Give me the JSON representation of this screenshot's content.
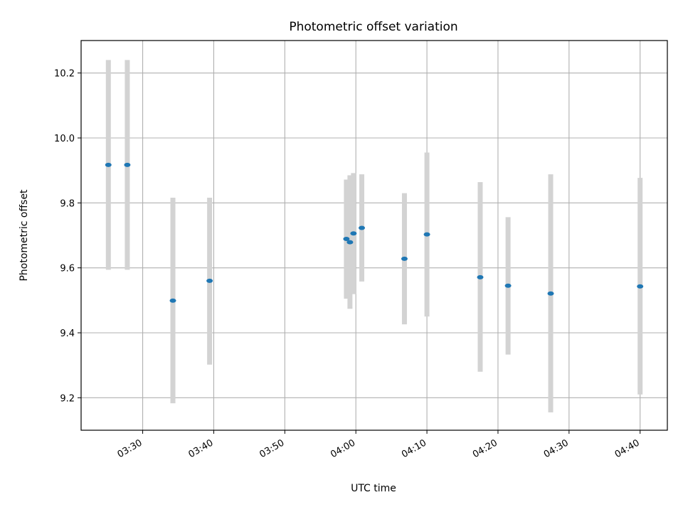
{
  "chart_data": {
    "type": "scatter",
    "title": "Photometric offset variation",
    "xlabel": "UTC time",
    "ylabel": "Photometric offset",
    "x_axis": "time",
    "xlim": [
      "03:21:20",
      "04:43:50"
    ],
    "ylim": [
      9.1,
      10.3
    ],
    "xticks": [
      "03:30",
      "03:40",
      "03:50",
      "04:00",
      "04:10",
      "04:20",
      "04:30",
      "04:40"
    ],
    "yticks": [
      9.2,
      9.4,
      9.6,
      9.8,
      10.0,
      10.2
    ],
    "ytick_labels": [
      "9.2",
      "9.4",
      "9.6",
      "9.8",
      "10.0",
      "10.2"
    ],
    "grid": true,
    "error_bar_color": "#d3d3d3",
    "point_color": "#1f77b4",
    "series": [
      {
        "points": [
          {
            "x": "03:25:10",
            "y": 9.917,
            "ylow": 9.594,
            "yhigh": 10.24
          },
          {
            "x": "03:27:50",
            "y": 9.917,
            "ylow": 9.594,
            "yhigh": 10.24
          },
          {
            "x": "03:34:15",
            "y": 9.499,
            "ylow": 9.183,
            "yhigh": 9.816
          },
          {
            "x": "03:39:25",
            "y": 9.56,
            "ylow": 9.302,
            "yhigh": 9.816
          },
          {
            "x": "03:58:40",
            "y": 9.689,
            "ylow": 9.505,
            "yhigh": 9.872
          },
          {
            "x": "03:59:10",
            "y": 9.679,
            "ylow": 9.474,
            "yhigh": 9.885
          },
          {
            "x": "03:59:40",
            "y": 9.706,
            "ylow": 9.519,
            "yhigh": 9.892
          },
          {
            "x": "04:00:50",
            "y": 9.723,
            "ylow": 9.558,
            "yhigh": 9.888
          },
          {
            "x": "04:06:50",
            "y": 9.628,
            "ylow": 9.426,
            "yhigh": 9.83
          },
          {
            "x": "04:10:00",
            "y": 9.703,
            "ylow": 9.45,
            "yhigh": 9.955
          },
          {
            "x": "04:17:30",
            "y": 9.571,
            "ylow": 9.28,
            "yhigh": 9.864
          },
          {
            "x": "04:21:25",
            "y": 9.545,
            "ylow": 9.333,
            "yhigh": 9.756
          },
          {
            "x": "04:27:25",
            "y": 9.521,
            "ylow": 9.155,
            "yhigh": 9.888
          },
          {
            "x": "04:40:00",
            "y": 9.543,
            "ylow": 9.21,
            "yhigh": 9.877
          }
        ]
      }
    ]
  }
}
